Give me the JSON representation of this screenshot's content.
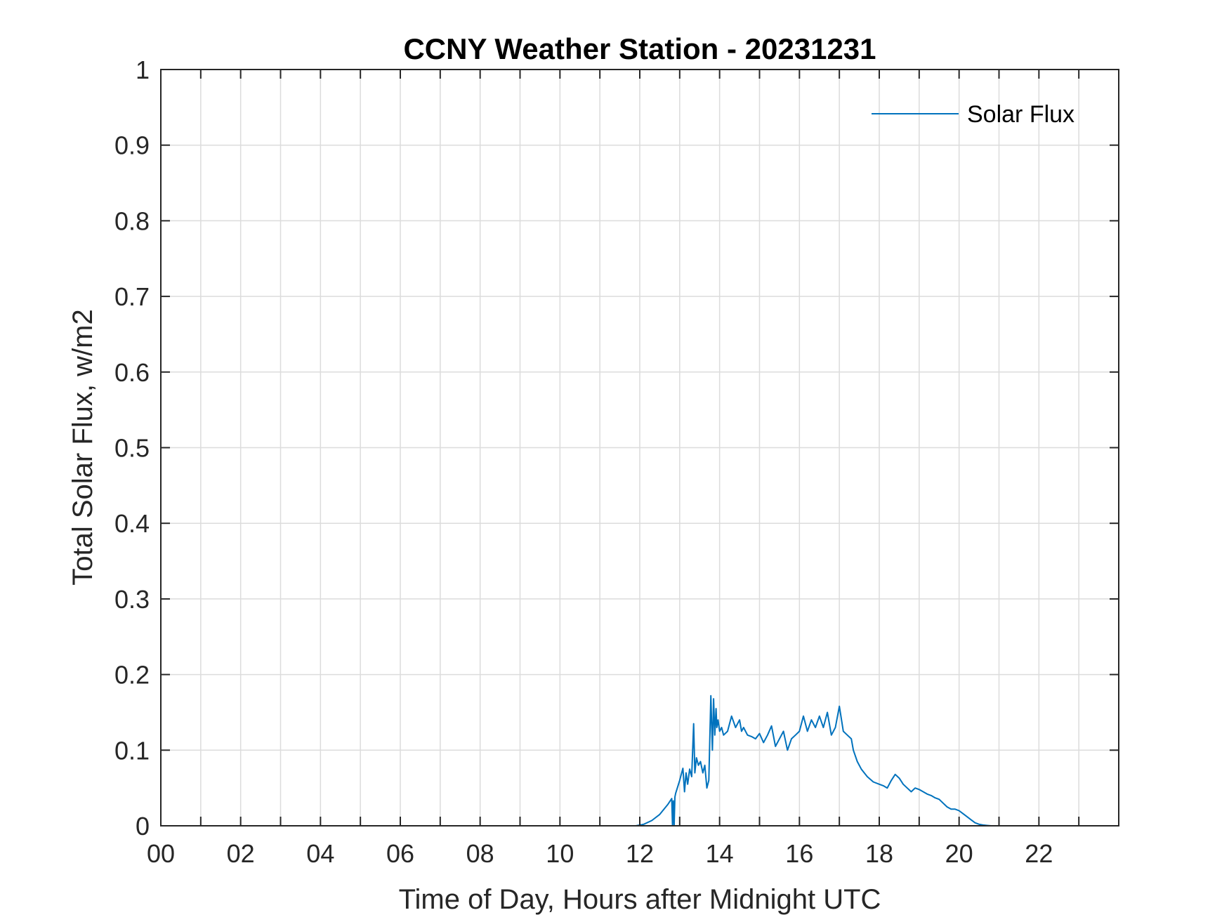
{
  "chart_data": {
    "type": "line",
    "title": "CCNY Weather Station - 20231231",
    "xlabel": "Time of Day, Hours after Midnight UTC",
    "ylabel": "Total Solar Flux, w/m2",
    "xlim": [
      0,
      24
    ],
    "ylim": [
      0,
      1
    ],
    "xticks": [
      0,
      2,
      4,
      6,
      8,
      10,
      12,
      14,
      16,
      18,
      20,
      22
    ],
    "xtick_labels": [
      "00",
      "02",
      "04",
      "06",
      "08",
      "10",
      "12",
      "14",
      "16",
      "18",
      "20",
      "22"
    ],
    "yticks": [
      0,
      0.1,
      0.2,
      0.3,
      0.4,
      0.5,
      0.6,
      0.7,
      0.8,
      0.9,
      1
    ],
    "ytick_labels": [
      "0",
      "0.1",
      "0.2",
      "0.3",
      "0.4",
      "0.5",
      "0.6",
      "0.7",
      "0.8",
      "0.9",
      "1"
    ],
    "x_minor_grid_step": 1,
    "grid": true,
    "legend_position": "top-right",
    "colors": {
      "series": "#0072BD",
      "grid": "#dcdcdc",
      "axis": "#262626"
    },
    "series": [
      {
        "name": "Solar Flux",
        "x": [
          0,
          11.9,
          12.1,
          12.3,
          12.5,
          12.7,
          12.8,
          12.82,
          12.84,
          12.86,
          12.88,
          12.9,
          13.0,
          13.08,
          13.12,
          13.16,
          13.2,
          13.25,
          13.3,
          13.35,
          13.38,
          13.42,
          13.47,
          13.52,
          13.58,
          13.63,
          13.68,
          13.73,
          13.78,
          13.82,
          13.85,
          13.88,
          13.91,
          13.93,
          13.96,
          14.0,
          14.05,
          14.1,
          14.2,
          14.3,
          14.4,
          14.5,
          14.55,
          14.6,
          14.7,
          14.8,
          14.9,
          15.0,
          15.1,
          15.2,
          15.3,
          15.4,
          15.5,
          15.6,
          15.7,
          15.8,
          15.9,
          16.0,
          16.1,
          16.2,
          16.3,
          16.4,
          16.5,
          16.6,
          16.7,
          16.8,
          16.9,
          17.0,
          17.1,
          17.2,
          17.3,
          17.35,
          17.45,
          17.55,
          17.7,
          17.85,
          18.0,
          18.1,
          18.2,
          18.3,
          18.4,
          18.5,
          18.6,
          18.7,
          18.8,
          18.9,
          19.0,
          19.1,
          19.2,
          19.3,
          19.4,
          19.5,
          19.6,
          19.7,
          19.8,
          19.9,
          20.0,
          20.1,
          20.2,
          20.3,
          20.4,
          20.5,
          20.6,
          20.7,
          20.8,
          20.9,
          21.0,
          21.1,
          21.2,
          21.3,
          21.4,
          21.5,
          21.7,
          21.9,
          22.0,
          24.0
        ],
        "y": [
          0,
          0,
          0.002,
          0.007,
          0.015,
          0.028,
          0.036,
          0.0,
          0.033,
          0.0,
          0.038,
          0.043,
          0.06,
          0.076,
          0.045,
          0.07,
          0.055,
          0.075,
          0.065,
          0.135,
          0.07,
          0.09,
          0.08,
          0.085,
          0.07,
          0.08,
          0.05,
          0.06,
          0.172,
          0.1,
          0.168,
          0.12,
          0.155,
          0.13,
          0.14,
          0.125,
          0.13,
          0.12,
          0.125,
          0.145,
          0.13,
          0.14,
          0.125,
          0.13,
          0.12,
          0.118,
          0.115,
          0.122,
          0.11,
          0.12,
          0.132,
          0.105,
          0.115,
          0.125,
          0.1,
          0.115,
          0.12,
          0.125,
          0.145,
          0.125,
          0.14,
          0.13,
          0.145,
          0.13,
          0.15,
          0.12,
          0.13,
          0.158,
          0.125,
          0.12,
          0.115,
          0.1,
          0.085,
          0.075,
          0.065,
          0.058,
          0.055,
          0.053,
          0.05,
          0.06,
          0.068,
          0.063,
          0.055,
          0.05,
          0.045,
          0.05,
          0.048,
          0.045,
          0.042,
          0.04,
          0.037,
          0.035,
          0.03,
          0.025,
          0.022,
          0.022,
          0.02,
          0.016,
          0.012,
          0.008,
          0.004,
          0.002,
          0.001,
          0.0005,
          0,
          0,
          0,
          0,
          0,
          0,
          0,
          0,
          0,
          0,
          0,
          0
        ]
      }
    ]
  }
}
